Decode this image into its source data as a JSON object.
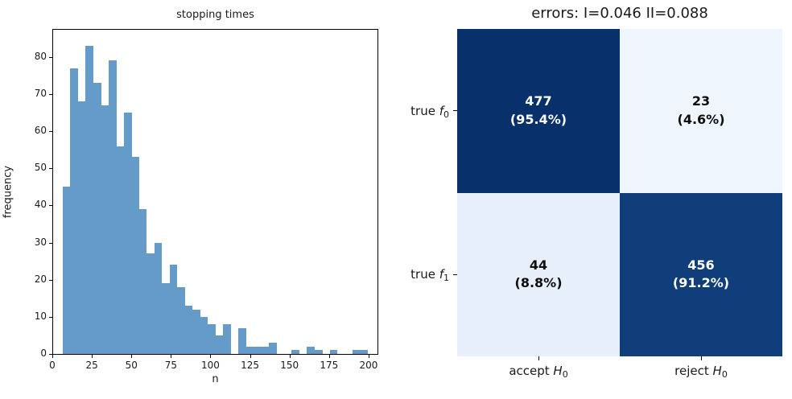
{
  "figure": {
    "background": "#ffffff"
  },
  "left_plot": {
    "title": "stopping times",
    "xlabel": "n",
    "ylabel": "frequency"
  },
  "chart_data": [
    {
      "type": "bar",
      "subtype": "histogram",
      "title": "stopping times",
      "xlabel": "n",
      "ylabel": "frequency",
      "bin_start": 6,
      "bin_width": 4.825,
      "values": [
        45,
        77,
        68,
        83,
        73,
        67,
        79,
        56,
        65,
        53,
        39,
        27,
        30,
        19,
        24,
        18,
        13,
        12,
        10,
        8,
        5,
        8,
        0,
        7,
        2,
        2,
        2,
        3,
        0,
        0,
        1,
        0,
        2,
        1,
        0,
        1,
        0,
        0,
        1,
        1
      ],
      "x_ticks": [
        0,
        25,
        50,
        75,
        100,
        125,
        150,
        175,
        200
      ],
      "y_ticks": [
        0,
        10,
        20,
        30,
        40,
        50,
        60,
        70,
        80
      ],
      "xlim": [
        0,
        205.1
      ],
      "ylim": [
        0,
        87.3
      ],
      "grid": false,
      "bar_color": "#659bc8"
    },
    {
      "type": "heatmap",
      "title": "errors: I=0.046 II=0.088",
      "row_categories": [
        "true f0",
        "true f1"
      ],
      "col_categories": [
        "accept H0",
        "reject H0"
      ],
      "values": [
        [
          477,
          23
        ],
        [
          44,
          456
        ]
      ],
      "percent": [
        [
          95.4,
          4.6
        ],
        [
          8.8,
          91.2
        ]
      ],
      "type_I_error": 0.046,
      "type_II_error": 0.088,
      "colormap": "Blues"
    }
  ],
  "confusion": {
    "title": "errors: I=0.046 II=0.088",
    "row_labels": [
      {
        "prefix": "true ",
        "symbol": "f",
        "sub": "0"
      },
      {
        "prefix": "true ",
        "symbol": "f",
        "sub": "1"
      }
    ],
    "col_labels": [
      {
        "prefix": "accept ",
        "symbol": "H",
        "sub": "0"
      },
      {
        "prefix": "reject ",
        "symbol": "H",
        "sub": "0"
      }
    ],
    "cells": [
      {
        "value": "477",
        "pct": "(95.4%)",
        "bg": "#08306b",
        "fg": "#ffffff"
      },
      {
        "value": "23",
        "pct": "(4.6%)",
        "bg": "#f0f6fd",
        "fg": "#0d0d0d"
      },
      {
        "value": "44",
        "pct": "(8.8%)",
        "bg": "#e7f0fa",
        "fg": "#0d0d0d"
      },
      {
        "value": "456",
        "pct": "(91.2%)",
        "bg": "#0f3e7a",
        "fg": "#ffffff"
      }
    ]
  }
}
